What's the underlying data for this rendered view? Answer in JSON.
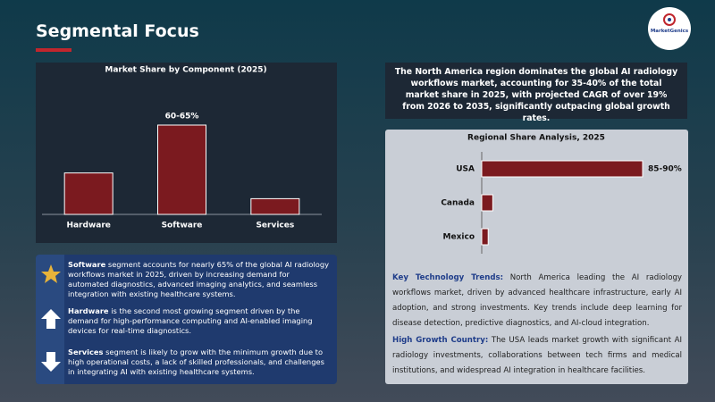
{
  "header": {
    "title": "Segmental Focus",
    "logo": "MarketGenics"
  },
  "chart_data": [
    {
      "type": "bar",
      "title": "Market Share by Component (2025)",
      "categories": [
        "Hardware",
        "Software",
        "Services"
      ],
      "values": [
        29,
        62.5,
        11
      ],
      "value_labels": [
        null,
        "60-65%",
        null
      ],
      "color": "#7b1a1f"
    },
    {
      "type": "hbar",
      "title": "Regional Share Analysis, 2025",
      "categories": [
        "USA",
        "Canada",
        "Mexico"
      ],
      "values": [
        87.5,
        6,
        3.5
      ],
      "value_labels": [
        "85-90%",
        null,
        null
      ],
      "color": "#7b1a1f"
    }
  ],
  "summary": "The North America region dominates the global AI radiology workflows market, accounting for 35-40% of the total market share in 2025, with projected CAGR of over 19% from 2026 to 2035, significantly outpacing global growth rates.",
  "segments": [
    {
      "lead": "Software",
      "text": " segment accounts for nearly 65% of the global AI radiology workflows market in 2025, driven by increasing demand for automated diagnostics, advanced imaging analytics, and seamless integration with existing healthcare systems."
    },
    {
      "lead": "Hardware",
      "text": " is the second most growing segment driven by the demand for high-performance computing and AI-enabled imaging devices for real-time diagnostics."
    },
    {
      "lead": "Services",
      "text": " segment is likely to grow with the minimum growth due to high operational costs, a lack of skilled professionals, and challenges in integrating AI with existing healthcare systems."
    }
  ],
  "insights": [
    {
      "lead": "Key Technology Trends:",
      "text": " North America leading the AI radiology workflows market, driven by advanced healthcare infrastructure, early AI adoption, and strong investments. Key trends include deep learning for disease detection, predictive diagnostics, and AI-cloud integration."
    },
    {
      "lead": "High Growth Country:",
      "text": " The USA leads market growth with significant AI radiology investments, collaborations between tech firms and medical institutions, and widespread AI integration in healthcare facilities."
    }
  ]
}
